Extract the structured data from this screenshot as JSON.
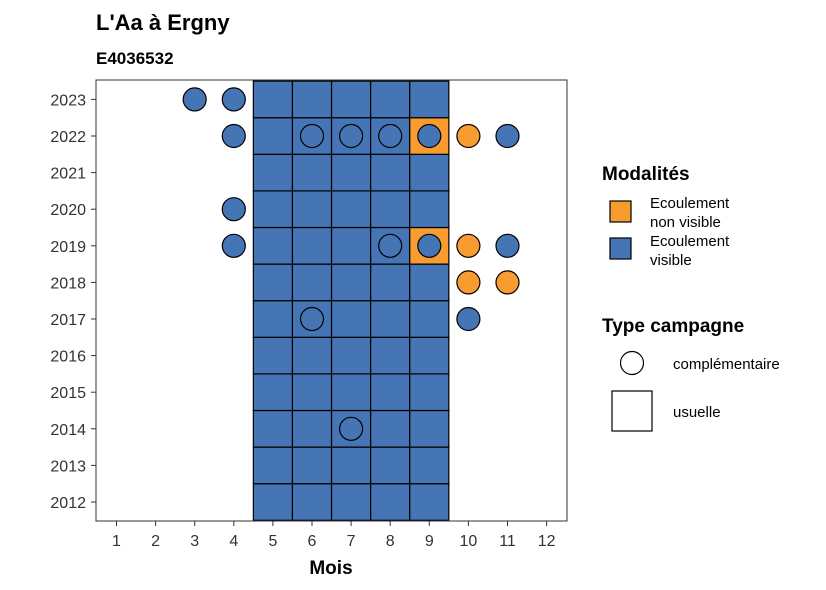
{
  "chart_data": {
    "type": "scatter",
    "title": "L'Aa à Ergny",
    "subtitle": "E4036532",
    "xlabel": "Mois",
    "ylabel": "",
    "x_ticks": [
      1,
      2,
      3,
      4,
      5,
      6,
      7,
      8,
      9,
      10,
      11,
      12
    ],
    "y_ticks": [
      "2012",
      "2013",
      "2014",
      "2015",
      "2016",
      "2017",
      "2018",
      "2019",
      "2020",
      "2021",
      "2022",
      "2023"
    ],
    "grid": false,
    "colors": {
      "Ecoulement visible": "#4575b4",
      "Ecoulement non visible": "#f89c31"
    },
    "legend_position": "right",
    "legend": {
      "modalites_title": "Modalités",
      "modalites": [
        {
          "label": [
            "Ecoulement",
            "non visible"
          ],
          "color": "#f89c31"
        },
        {
          "label": [
            "Ecoulement",
            "visible"
          ],
          "color": "#4575b4"
        }
      ],
      "campagne_title": "Type campagne",
      "campagnes": [
        {
          "label": "complémentaire",
          "shape": "circle"
        },
        {
          "label": "usuelle",
          "shape": "square"
        }
      ]
    },
    "usuelle_months": [
      5,
      6,
      7,
      8,
      9
    ],
    "usuelle_years": [
      2012,
      2013,
      2014,
      2015,
      2016,
      2017,
      2018,
      2019,
      2020,
      2021,
      2022,
      2023
    ],
    "usuelle_non_visible": [
      {
        "year": 2022,
        "month": 9
      },
      {
        "year": 2019,
        "month": 9
      }
    ],
    "complementaire": [
      {
        "year": 2023,
        "month": 3,
        "modalite": "Ecoulement visible"
      },
      {
        "year": 2023,
        "month": 4,
        "modalite": "Ecoulement visible"
      },
      {
        "year": 2022,
        "month": 4,
        "modalite": "Ecoulement visible"
      },
      {
        "year": 2022,
        "month": 6,
        "modalite": "Ecoulement visible"
      },
      {
        "year": 2022,
        "month": 7,
        "modalite": "Ecoulement visible"
      },
      {
        "year": 2022,
        "month": 8,
        "modalite": "Ecoulement visible"
      },
      {
        "year": 2022,
        "month": 9,
        "modalite": "Ecoulement visible"
      },
      {
        "year": 2022,
        "month": 10,
        "modalite": "Ecoulement non visible"
      },
      {
        "year": 2022,
        "month": 11,
        "modalite": "Ecoulement visible"
      },
      {
        "year": 2020,
        "month": 4,
        "modalite": "Ecoulement visible"
      },
      {
        "year": 2019,
        "month": 4,
        "modalite": "Ecoulement visible"
      },
      {
        "year": 2019,
        "month": 8,
        "modalite": "Ecoulement visible"
      },
      {
        "year": 2019,
        "month": 9,
        "modalite": "Ecoulement visible"
      },
      {
        "year": 2019,
        "month": 10,
        "modalite": "Ecoulement non visible"
      },
      {
        "year": 2019,
        "month": 11,
        "modalite": "Ecoulement visible"
      },
      {
        "year": 2018,
        "month": 10,
        "modalite": "Ecoulement non visible"
      },
      {
        "year": 2018,
        "month": 11,
        "modalite": "Ecoulement non visible"
      },
      {
        "year": 2017,
        "month": 6,
        "modalite": "Ecoulement visible"
      },
      {
        "year": 2017,
        "month": 10,
        "modalite": "Ecoulement visible"
      },
      {
        "year": 2014,
        "month": 7,
        "modalite": "Ecoulement visible"
      }
    ]
  }
}
